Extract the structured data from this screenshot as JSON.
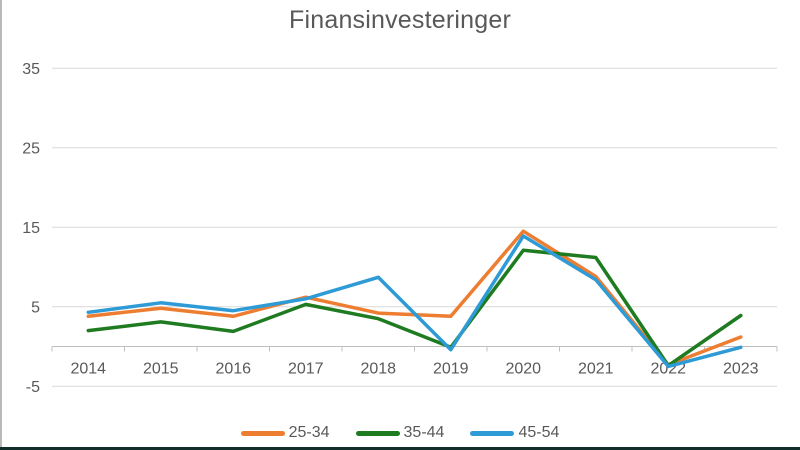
{
  "title": "Finansinvesteringer",
  "chart_data": {
    "type": "line",
    "categories": [
      "2014",
      "2015",
      "2016",
      "2017",
      "2018",
      "2019",
      "2020",
      "2021",
      "2022",
      "2023"
    ],
    "series": [
      {
        "name": "25-34",
        "color": "#ED7D31",
        "values": [
          3.8,
          4.8,
          3.8,
          6.2,
          4.2,
          3.8,
          14.5,
          8.8,
          -2.3,
          1.2
        ]
      },
      {
        "name": "35-44",
        "color": "#1E7B1F",
        "values": [
          2.0,
          3.1,
          1.9,
          5.3,
          3.5,
          -0.1,
          12.1,
          11.2,
          -2.4,
          3.9
        ]
      },
      {
        "name": "45-54",
        "color": "#2E9BD6",
        "values": [
          4.3,
          5.5,
          4.5,
          6.0,
          8.7,
          -0.4,
          13.9,
          8.4,
          -2.5,
          -0.1
        ]
      }
    ],
    "ylim": [
      -5,
      35
    ],
    "yticks": [
      35,
      25,
      15,
      5,
      -5
    ],
    "axis_cross_value": 0,
    "grid": true,
    "legend_position": "bottom",
    "styles": {
      "gridline_color": "#d9d9d9",
      "axis_line_color": "#bfbfbf",
      "tick_label_color": "#595959",
      "line_width": 3.5
    }
  }
}
